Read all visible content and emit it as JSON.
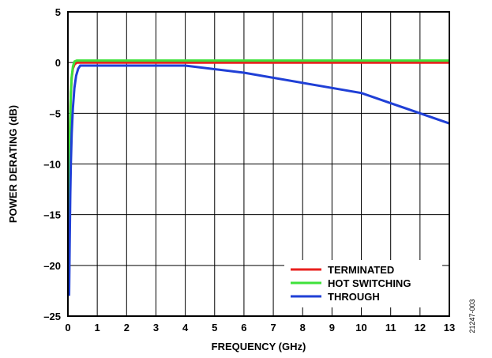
{
  "chart_data": {
    "type": "line",
    "title": "",
    "xlabel": "FREQUENCY (GHz)",
    "ylabel": "POWER DERATING (dB)",
    "xlim": [
      0,
      13
    ],
    "ylim": [
      -25,
      5
    ],
    "x_ticks": [
      "0",
      "1",
      "2",
      "3",
      "4",
      "5",
      "6",
      "7",
      "8",
      "9",
      "10",
      "11",
      "12",
      "13"
    ],
    "y_ticks": [
      "5",
      "0",
      "–5",
      "–10",
      "–15",
      "–20",
      "–25"
    ],
    "grid": true,
    "legend_position": "bottom-right",
    "series": [
      {
        "name": "TERMINATED",
        "color": "#e8201e",
        "x": [
          0.02,
          0.04,
          0.06,
          0.08,
          0.1,
          0.13,
          0.17,
          0.22,
          0.3,
          0.5,
          13
        ],
        "y": [
          -20.5,
          -14,
          -8.5,
          -5,
          -3,
          -1.5,
          -0.6,
          -0.2,
          0,
          0,
          0
        ]
      },
      {
        "name": "HOT SWITCHING",
        "color": "#3ee23a",
        "x": [
          0.02,
          0.04,
          0.06,
          0.08,
          0.1,
          0.13,
          0.17,
          0.22,
          0.3,
          0.5,
          13
        ],
        "y": [
          -21,
          -14,
          -8.5,
          -5,
          -3,
          -1.4,
          -0.4,
          0.1,
          0.2,
          0.2,
          0.2
        ]
      },
      {
        "name": "THROUGH",
        "color": "#1f3fd6",
        "x": [
          0.04,
          0.06,
          0.08,
          0.1,
          0.13,
          0.17,
          0.22,
          0.28,
          0.35,
          0.42,
          4,
          6,
          10,
          13
        ],
        "y": [
          -23,
          -18,
          -13,
          -10,
          -7,
          -4.5,
          -2.5,
          -1.3,
          -0.6,
          -0.3,
          -0.3,
          -1,
          -3,
          -6
        ]
      }
    ]
  },
  "figure_id": "21247-003"
}
